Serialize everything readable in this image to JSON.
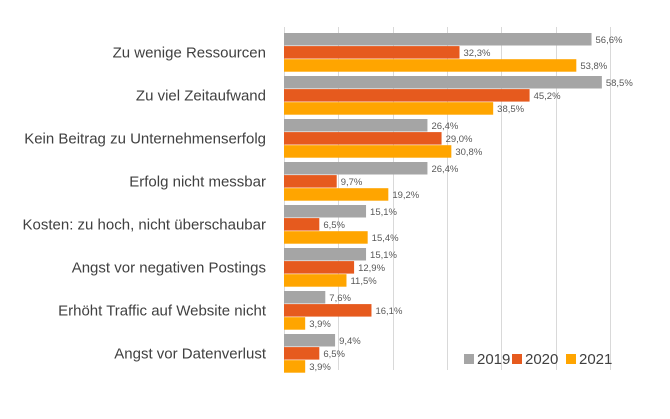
{
  "chart_data": {
    "type": "bar",
    "orientation": "horizontal",
    "categories": [
      "Zu wenige Ressourcen",
      "Zu viel Zeitaufwand",
      "Kein Beitrag zu Unternehmenserfolg",
      "Erfolg nicht messbar",
      "Kosten: zu hoch, nicht überschaubar",
      "Angst vor negativen Postings",
      "Erhöht Traffic auf Website nicht",
      "Angst vor Datenverlust"
    ],
    "series": [
      {
        "name": "2019",
        "color": "#a5a5a5",
        "values": [
          56.6,
          58.5,
          26.4,
          26.4,
          15.1,
          15.1,
          7.6,
          9.4
        ],
        "labels": [
          "56,6%",
          "58,5%",
          "26,4%",
          "26,4%",
          "15,1%",
          "15,1%",
          "7,6%",
          "9,4%"
        ]
      },
      {
        "name": "2020",
        "color": "#e65a1e",
        "values": [
          32.3,
          45.2,
          29.0,
          9.7,
          6.5,
          12.9,
          16.1,
          6.5
        ],
        "labels": [
          "32,3%",
          "45,2%",
          "29,0%",
          "9,7%",
          "6,5%",
          "12,9%",
          "16,1%",
          "6,5%"
        ]
      },
      {
        "name": "2021",
        "color": "#ffa500",
        "values": [
          53.8,
          38.5,
          30.8,
          19.2,
          15.4,
          11.5,
          3.9,
          3.9
        ],
        "labels": [
          "53,8%",
          "38,5%",
          "30,8%",
          "19,2%",
          "15,4%",
          "11,5%",
          "3,9%",
          "3,9%"
        ]
      }
    ],
    "xlim": [
      0,
      60
    ],
    "grid": true,
    "legend_position": "bottom-right",
    "title": "",
    "xlabel": "",
    "ylabel": ""
  }
}
